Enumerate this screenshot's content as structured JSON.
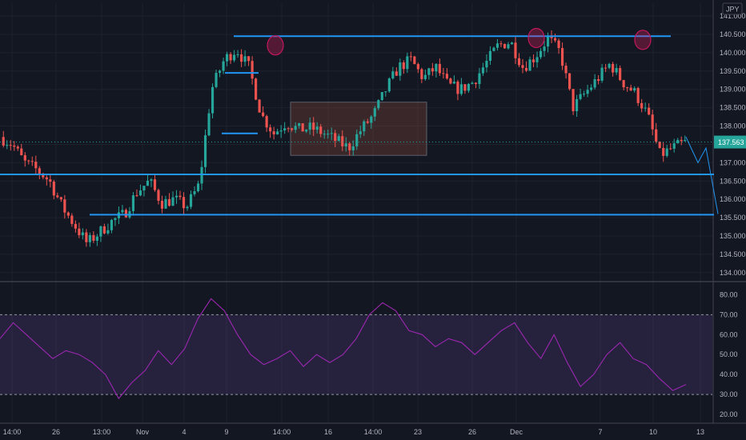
{
  "chart_data": {
    "type": "candlestick",
    "currency": "JPY",
    "last_price": "137.563",
    "price_axis": {
      "ticks": [
        "141.000",
        "140.500",
        "140.000",
        "139.500",
        "139.000",
        "138.500",
        "138.000",
        "137.500",
        "137.000",
        "136.500",
        "136.000",
        "135.500",
        "135.000",
        "134.500",
        "134.000"
      ],
      "range": [
        133.8,
        141.35
      ]
    },
    "rsi_axis": {
      "ticks": [
        "80.00",
        "70.00",
        "60.00",
        "50.00",
        "40.00",
        "30.00",
        "20.00"
      ],
      "range": [
        16,
        85
      ],
      "overbought": 70,
      "oversold": 30
    },
    "time_axis": {
      "labels": [
        "14:00",
        "26",
        "13:00",
        "Nov",
        "4",
        "9",
        "14:00",
        "16",
        "14:00",
        "23",
        "26",
        "Dec",
        "7",
        "10",
        "13"
      ]
    },
    "horizontal_levels": [
      {
        "price": 140.45
      },
      {
        "price": 139.45
      },
      {
        "price": 137.8
      },
      {
        "price": 136.68
      },
      {
        "price": 135.58
      }
    ],
    "consolidation_box": {
      "price_top": 138.65,
      "price_bottom": 137.2
    },
    "top_markers": [
      {
        "price": 140.2
      },
      {
        "price": 140.4
      },
      {
        "price": 140.35
      }
    ],
    "price_path": [
      137.7,
      137.5,
      137.0,
      136.8,
      136.5,
      135.8,
      135.3,
      134.8,
      135.1,
      135.4,
      135.6,
      136.2,
      136.5,
      135.9,
      136.0,
      135.8,
      136.4,
      139.0,
      139.8,
      140.1,
      139.6,
      138.3,
      137.8,
      138.1,
      137.9,
      137.95,
      137.8,
      137.6,
      137.4,
      137.9,
      138.3,
      139.0,
      139.6,
      139.8,
      139.3,
      139.6,
      139.1,
      139.0,
      139.2,
      139.7,
      140.2,
      140.3,
      139.6,
      139.9,
      140.4,
      140.0,
      138.5,
      138.9,
      139.3,
      139.7,
      139.2,
      138.9,
      138.3,
      137.2,
      137.4,
      137.55
    ],
    "rsi_series": [
      58,
      66,
      60,
      54,
      48,
      52,
      50,
      46,
      40,
      28,
      36,
      42,
      52,
      45,
      53,
      68,
      78,
      72,
      60,
      50,
      45,
      48,
      52,
      44,
      50,
      46,
      50,
      58,
      70,
      76,
      72,
      62,
      60,
      54,
      58,
      56,
      50,
      56,
      62,
      66,
      56,
      48,
      60,
      46,
      34,
      40,
      50,
      56,
      48,
      45,
      38,
      32,
      35
    ]
  }
}
